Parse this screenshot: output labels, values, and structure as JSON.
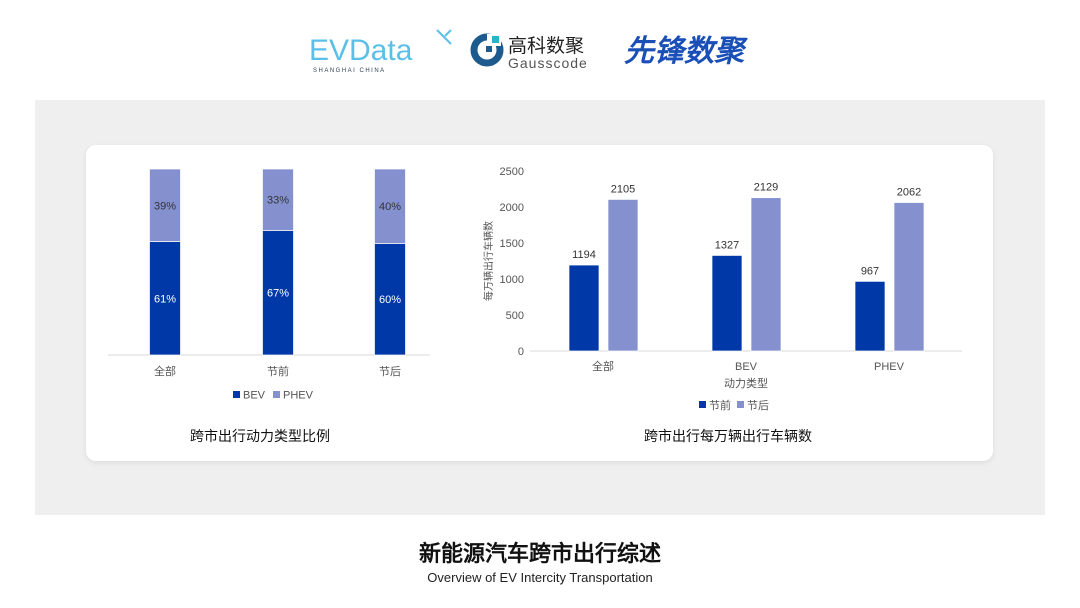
{
  "logos": {
    "evdata": {
      "text": "EVData",
      "sub": "SHANGHAI CHINA"
    },
    "gausscode": {
      "cn": "高科数聚",
      "en": "Gausscode"
    },
    "xianfeng": {
      "text": "先锋数聚"
    }
  },
  "colors": {
    "bev": "#0038a8",
    "phev": "#8591cf",
    "before": "#0038a8",
    "after": "#8591cf",
    "panel": "#efefef"
  },
  "chart_data": [
    {
      "type": "bar",
      "stacked": true,
      "percent": true,
      "title": "跨市出行动力类型比例",
      "categories": [
        "全部",
        "节前",
        "节后"
      ],
      "series": [
        {
          "name": "BEV",
          "values": [
            61,
            67,
            60
          ],
          "labels": [
            "61%",
            "67%",
            "60%"
          ]
        },
        {
          "name": "PHEV",
          "values": [
            39,
            33,
            40
          ],
          "labels": [
            "39%",
            "33%",
            "40%"
          ]
        }
      ],
      "ylim": [
        0,
        100
      ],
      "legend": "bottom",
      "grid": false
    },
    {
      "type": "bar",
      "title": "跨市出行每万辆出行车辆数",
      "xlabel": "动力类型",
      "ylabel": "每万辆出行车辆数",
      "categories": [
        "全部",
        "BEV",
        "PHEV"
      ],
      "series": [
        {
          "name": "节前",
          "values": [
            1194,
            1327,
            967
          ]
        },
        {
          "name": "节后",
          "values": [
            2105,
            2129,
            2062
          ]
        }
      ],
      "yticks": [
        0,
        500,
        1000,
        1500,
        2000,
        2500
      ],
      "ylim": [
        0,
        2500
      ],
      "legend": "bottom",
      "grid": false
    }
  ],
  "footer": {
    "title": "新能源汽车跨市出行综述",
    "subtitle": "Overview of EV Intercity Transportation"
  }
}
